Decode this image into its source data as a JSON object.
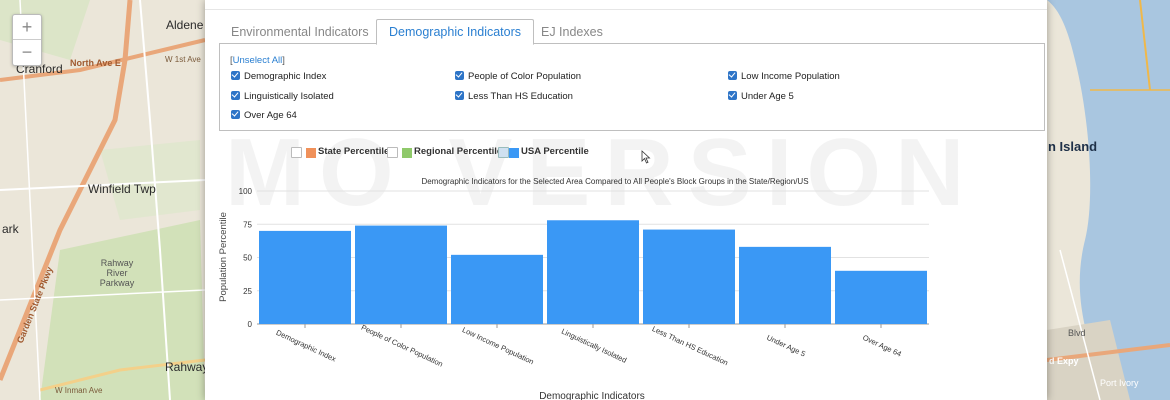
{
  "map": {
    "labels": {
      "aldene": "Aldene",
      "cranford": "Cranford",
      "north_ave_e": "North Ave E",
      "w_1st_ave": "W 1st Ave",
      "winfield_twp": "Winfield Twp",
      "ark": "ark",
      "rahway_river_parkway": "Rahway River Parkway",
      "garden_state_pkwy": "Garden State Pkwy",
      "rahway": "Rahway",
      "w_inman_ave": "W Inman Ave",
      "island": "n Island",
      "blvd": "Blvd",
      "expy": "d Expy",
      "port_ivory": "Port Ivory"
    },
    "zoom": {
      "in": "+",
      "out": "−"
    }
  },
  "tabs": [
    {
      "label": "Environmental Indicators",
      "active": false
    },
    {
      "label": "Demographic Indicators",
      "active": true
    },
    {
      "label": "EJ Indexes",
      "active": false
    }
  ],
  "unselect_all": "[Unselect All]",
  "unselect_all_open": "[",
  "unselect_all_link": "Unselect All",
  "unselect_all_close": "]",
  "checkboxes": [
    {
      "label": "Demographic Index",
      "checked": true
    },
    {
      "label": "People of Color Population",
      "checked": true
    },
    {
      "label": "Low Income Population",
      "checked": true
    },
    {
      "label": "Linguistically Isolated",
      "checked": true
    },
    {
      "label": "Less Than HS Education",
      "checked": true
    },
    {
      "label": "Under Age 5",
      "checked": true
    },
    {
      "label": "Over Age 64",
      "checked": true
    }
  ],
  "legend": [
    {
      "label": "State Percentile",
      "color": "#f0915a",
      "checked": false
    },
    {
      "label": "Regional Percentile",
      "color": "#8fc96a",
      "checked": false
    },
    {
      "label": "USA Percentile",
      "color": "#3a98f5",
      "checked": true
    }
  ],
  "watermark": "MO VERSION",
  "chart_data": {
    "type": "bar",
    "title": "Demographic Indicators for the Selected Area Compared to All People's Block Groups in the State/Region/US",
    "xlabel": "Demographic Indicators",
    "ylabel": "Population Percentile",
    "categories": [
      "Demographic Index",
      "People of Color Population",
      "Low Income Population",
      "Linguistically Isolated",
      "Less Than HS Education",
      "Under Age 5",
      "Over Age 64"
    ],
    "series": [
      {
        "name": "USA Percentile",
        "color": "#3a98f5",
        "values": [
          70,
          74,
          52,
          78,
          71,
          58,
          40
        ]
      }
    ],
    "ylim": [
      0,
      100
    ],
    "yticks": [
      0,
      25,
      50,
      75,
      100
    ],
    "grid": true
  }
}
